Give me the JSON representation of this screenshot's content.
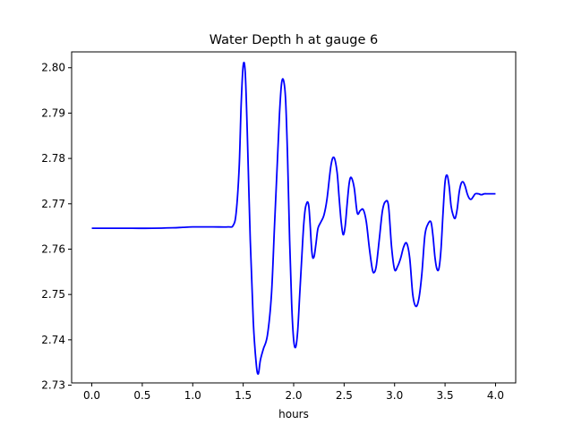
{
  "chart_data": {
    "type": "line",
    "title": "Water Depth h at gauge 6",
    "xlabel": "hours",
    "ylabel": "",
    "xlim": [
      -0.2,
      4.2
    ],
    "ylim": [
      2.7305,
      2.8035
    ],
    "xticks": [
      "0.0",
      "0.5",
      "1.0",
      "1.5",
      "2.0",
      "2.5",
      "3.0",
      "3.5",
      "4.0"
    ],
    "xtick_values": [
      0.0,
      0.5,
      1.0,
      1.5,
      2.0,
      2.5,
      3.0,
      3.5,
      4.0
    ],
    "yticks": [
      "2.73",
      "2.74",
      "2.75",
      "2.76",
      "2.77",
      "2.78",
      "2.79",
      "2.80"
    ],
    "ytick_values": [
      2.73,
      2.74,
      2.75,
      2.76,
      2.77,
      2.78,
      2.79,
      2.8
    ],
    "grid": false,
    "color": "#0000ff",
    "series": [
      {
        "x": [
          0.0,
          0.2,
          0.4,
          0.6,
          0.8,
          0.9,
          1.0,
          1.2,
          1.35,
          1.4,
          1.43,
          1.46,
          1.48,
          1.5,
          1.52,
          1.54,
          1.57,
          1.6,
          1.63,
          1.65,
          1.67,
          1.7,
          1.74,
          1.78,
          1.81,
          1.84,
          1.86,
          1.88,
          1.9,
          1.92,
          1.94,
          1.96,
          1.98,
          2.0,
          2.02,
          2.04,
          2.06,
          2.08,
          2.1,
          2.12,
          2.15,
          2.18,
          2.2,
          2.22,
          2.24,
          2.27,
          2.3,
          2.33,
          2.37,
          2.4,
          2.43,
          2.45,
          2.47,
          2.49,
          2.51,
          2.53,
          2.55,
          2.57,
          2.6,
          2.63,
          2.66,
          2.69,
          2.72,
          2.75,
          2.78,
          2.8,
          2.82,
          2.85,
          2.88,
          2.91,
          2.94,
          2.97,
          3.0,
          3.03,
          3.06,
          3.09,
          3.12,
          3.15,
          3.18,
          3.21,
          3.24,
          3.27,
          3.3,
          3.33,
          3.36,
          3.38,
          3.4,
          3.42,
          3.44,
          3.46,
          3.48,
          3.5,
          3.52,
          3.54,
          3.56,
          3.58,
          3.6,
          3.62,
          3.64,
          3.66,
          3.68,
          3.7,
          3.72,
          3.74,
          3.76,
          3.78,
          3.8,
          3.83,
          3.86,
          3.89,
          3.92,
          3.95,
          3.98,
          4.0
        ],
        "y": [
          2.7646,
          2.7646,
          2.7646,
          2.7646,
          2.7647,
          2.7648,
          2.7649,
          2.7649,
          2.7649,
          2.7652,
          2.768,
          2.778,
          2.792,
          2.8005,
          2.799,
          2.786,
          2.762,
          2.744,
          2.7345,
          2.7325,
          2.7355,
          2.738,
          2.741,
          2.75,
          2.765,
          2.78,
          2.79,
          2.7965,
          2.7972,
          2.793,
          2.78,
          2.762,
          2.748,
          2.74,
          2.7384,
          2.742,
          2.75,
          2.758,
          2.7655,
          2.7695,
          2.7695,
          2.7595,
          2.7582,
          2.761,
          2.7645,
          2.766,
          2.7675,
          2.771,
          2.7785,
          2.7802,
          2.777,
          2.7715,
          2.7662,
          2.7632,
          2.765,
          2.77,
          2.7745,
          2.7758,
          2.7735,
          2.768,
          2.7685,
          2.7687,
          2.766,
          2.7602,
          2.7555,
          2.7549,
          2.7565,
          2.7625,
          2.7685,
          2.7705,
          2.7695,
          2.7605,
          2.7555,
          2.7562,
          2.758,
          2.7605,
          2.7613,
          2.758,
          2.75,
          2.7474,
          2.749,
          2.7545,
          2.763,
          2.7655,
          2.766,
          2.763,
          2.7582,
          2.7556,
          2.7558,
          2.76,
          2.768,
          2.7748,
          2.7763,
          2.774,
          2.7695,
          2.7675,
          2.7668,
          2.7688,
          2.7725,
          2.7745,
          2.7748,
          2.7738,
          2.7722,
          2.7712,
          2.771,
          2.7716,
          2.7722,
          2.7722,
          2.772,
          2.7722,
          2.7722,
          2.7722,
          2.7722,
          2.7722
        ]
      }
    ]
  }
}
